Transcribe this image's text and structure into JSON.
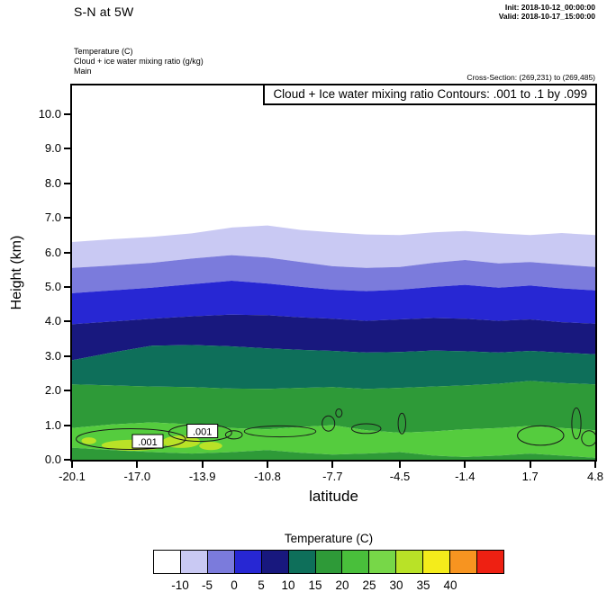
{
  "header": {
    "title": "S-N at 5W",
    "init_line": "Init: 2018-10-12_00:00:00",
    "valid_line": "Valid: 2018-10-17_15:00:00",
    "field_lines": [
      "Temperature   (C)",
      "Cloud + ice water mixing ratio   (g/kg)",
      "Main"
    ],
    "cross_section": "Cross-Section: (269,231) to (269,485)"
  },
  "chart_data": {
    "type": "heatmap",
    "subtype": "filled-temperature-cross-section-with-cloud-contour-lines",
    "title": "Cloud + Ice water mixing ratio Contours: .001 to .1 by .099",
    "xlabel": "latitude",
    "ylabel": "Height (km)",
    "xlim": [
      -20.1,
      4.8
    ],
    "ylim": [
      0,
      10.83
    ],
    "x_ticks": [
      "-20.1",
      "-17.0",
      "-13.9",
      "-10.8",
      "-7.7",
      "-4.5",
      "-1.4",
      "1.7",
      "4.8"
    ],
    "y_ticks": [
      "0.0",
      "1.0",
      "2.0",
      "3.0",
      "4.0",
      "5.0",
      "6.0",
      "7.0",
      "8.0",
      "9.0",
      "10.0"
    ],
    "grid": false,
    "sample_lats": [
      -20.1,
      -18.2,
      -16.3,
      -14.4,
      -12.5,
      -10.8,
      -9.2,
      -7.7,
      -6.1,
      -4.5,
      -2.9,
      -1.4,
      0.2,
      1.7,
      3.2,
      4.8
    ],
    "bands": [
      {
        "label": "below-minus10C",
        "temp_range": "< -10",
        "color": "#ffffff",
        "top": null
      },
      {
        "label": "minus10-to-minus5C",
        "temp_range": "-10 to -5",
        "color": "#c9c9f3",
        "top": [
          6.3,
          6.38,
          6.45,
          6.55,
          6.72,
          6.78,
          6.65,
          6.58,
          6.52,
          6.5,
          6.58,
          6.62,
          6.55,
          6.5,
          6.56,
          6.5
        ]
      },
      {
        "label": "minus5-to-0C",
        "temp_range": "-5 to 0",
        "color": "#7b7bdc",
        "top": [
          5.55,
          5.62,
          5.7,
          5.82,
          5.92,
          5.85,
          5.72,
          5.6,
          5.55,
          5.58,
          5.7,
          5.78,
          5.68,
          5.72,
          5.65,
          5.58
        ]
      },
      {
        "label": "0-to-5C",
        "temp_range": "0 to 5",
        "color": "#2727d3",
        "top": [
          4.82,
          4.9,
          4.98,
          5.08,
          5.18,
          5.1,
          5.0,
          4.92,
          4.88,
          4.92,
          5.0,
          5.06,
          4.98,
          5.04,
          4.96,
          4.9
        ]
      },
      {
        "label": "5-to-10C",
        "temp_range": "5 to 10",
        "color": "#18187e",
        "top": [
          3.92,
          4.0,
          4.08,
          4.15,
          4.2,
          4.18,
          4.12,
          4.08,
          4.02,
          4.06,
          4.1,
          4.08,
          4.02,
          4.06,
          3.98,
          3.94
        ]
      },
      {
        "label": "10-to-15C",
        "temp_range": "10 to 15",
        "color": "#0e6f5a",
        "top": [
          2.88,
          3.1,
          3.3,
          3.32,
          3.28,
          3.22,
          3.18,
          3.15,
          3.1,
          3.12,
          3.16,
          3.14,
          3.1,
          3.15,
          3.1,
          3.05
        ]
      },
      {
        "label": "15-to-20C",
        "temp_range": "15 to 20",
        "color": "#2e9a38",
        "top": [
          2.18,
          2.15,
          2.12,
          2.1,
          2.06,
          2.05,
          2.08,
          2.1,
          2.05,
          2.08,
          2.12,
          2.15,
          2.2,
          2.28,
          2.22,
          2.18
        ]
      },
      {
        "label": "20-to-25C",
        "temp_range": "20 to 25",
        "color": "#55cc3e",
        "top": [
          0.92,
          1.02,
          1.08,
          1.02,
          0.92,
          0.88,
          0.95,
          1.0,
          0.85,
          0.78,
          0.82,
          0.88,
          0.92,
          0.98,
          0.92,
          0.85
        ]
      },
      {
        "label": "surface-strip-15-to-20C",
        "temp_range": "15 to 20",
        "color": "#2e9a38",
        "top": [
          0.35,
          0.28,
          0.22,
          0.18,
          0.22,
          0.28,
          0.2,
          0.15,
          0.18,
          0.22,
          0.12,
          0.08,
          0.12,
          0.18,
          0.12,
          0.06
        ]
      }
    ],
    "patches": [
      {
        "label": "25-to-30C-pocket",
        "color": "#b9e227",
        "lat": -17.2,
        "h": 0.42,
        "rx": 1.5,
        "ry": 0.16
      },
      {
        "label": "25-to-30C-pocket",
        "color": "#b9e227",
        "lat": -14.9,
        "h": 0.52,
        "rx": 0.9,
        "ry": 0.18
      },
      {
        "label": "25-to-30C-pocket",
        "color": "#b9e227",
        "lat": -13.5,
        "h": 0.4,
        "rx": 0.55,
        "ry": 0.12
      },
      {
        "label": "25-to-30C-pocket",
        "color": "#b9e227",
        "lat": -19.3,
        "h": 0.55,
        "rx": 0.35,
        "ry": 0.1
      }
    ],
    "cloud_contour_value": 0.001,
    "cloud_contours": [
      {
        "lat": -17.3,
        "h": 0.6,
        "rx": 2.6,
        "ry": 0.3
      },
      {
        "lat": -14.0,
        "h": 0.78,
        "rx": 1.5,
        "ry": 0.25
      },
      {
        "lat": -12.4,
        "h": 0.72,
        "rx": 0.4,
        "ry": 0.12
      },
      {
        "lat": -10.2,
        "h": 0.82,
        "rx": 1.7,
        "ry": 0.16
      },
      {
        "lat": -7.9,
        "h": 1.05,
        "rx": 0.3,
        "ry": 0.22
      },
      {
        "lat": -7.4,
        "h": 1.35,
        "rx": 0.15,
        "ry": 0.12
      },
      {
        "lat": -6.1,
        "h": 0.9,
        "rx": 0.7,
        "ry": 0.14
      },
      {
        "lat": -4.4,
        "h": 1.05,
        "rx": 0.18,
        "ry": 0.3
      },
      {
        "lat": 2.2,
        "h": 0.7,
        "rx": 1.1,
        "ry": 0.28
      },
      {
        "lat": 3.9,
        "h": 1.05,
        "rx": 0.22,
        "ry": 0.45
      },
      {
        "lat": 4.5,
        "h": 0.62,
        "rx": 0.35,
        "ry": 0.22
      }
    ],
    "contour_labels": [
      {
        "text": ".001",
        "lat": -16.5,
        "h": 0.52
      },
      {
        "text": ".001",
        "lat": -13.9,
        "h": 0.82
      }
    ]
  },
  "colorbar": {
    "title": "Temperature  (C)",
    "colors": [
      "#ffffff",
      "#c9c9f3",
      "#7b7bdc",
      "#2727d3",
      "#18187e",
      "#0e6f5a",
      "#2e9a38",
      "#49bf3b",
      "#77d748",
      "#b9e227",
      "#f4ec1b",
      "#f79420",
      "#ee2012"
    ],
    "labels": [
      "-10",
      "-5",
      "0",
      "5",
      "10",
      "15",
      "20",
      "25",
      "30",
      "35",
      "40"
    ]
  }
}
